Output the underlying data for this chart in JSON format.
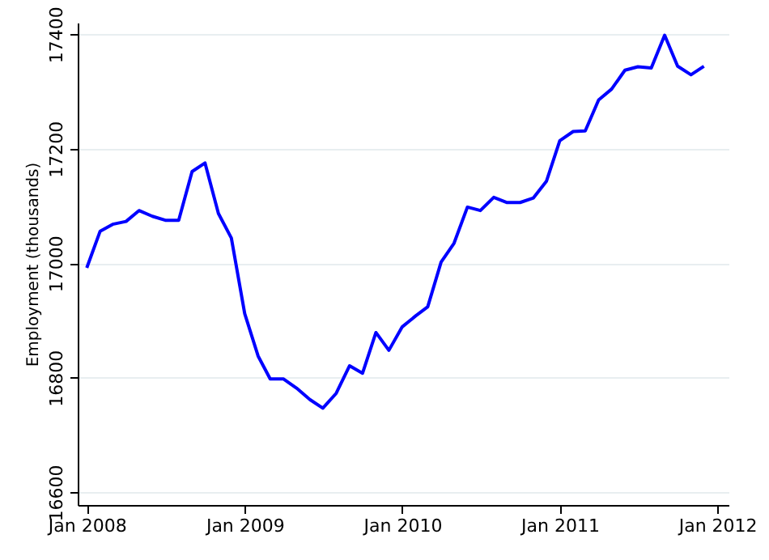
{
  "chart_data": {
    "type": "line",
    "ylabel": "Employment (thousands)",
    "x": [
      "2008-01",
      "2008-02",
      "2008-03",
      "2008-04",
      "2008-05",
      "2008-06",
      "2008-07",
      "2008-08",
      "2008-09",
      "2008-10",
      "2008-11",
      "2008-12",
      "2009-01",
      "2009-02",
      "2009-03",
      "2009-04",
      "2009-05",
      "2009-06",
      "2009-07",
      "2009-08",
      "2009-09",
      "2009-10",
      "2009-11",
      "2009-12",
      "2010-01",
      "2010-02",
      "2010-03",
      "2010-04",
      "2010-05",
      "2010-06",
      "2010-07",
      "2010-08",
      "2010-09",
      "2010-10",
      "2010-11",
      "2010-12",
      "2011-01",
      "2011-02",
      "2011-03",
      "2011-04",
      "2011-05",
      "2011-06",
      "2011-07",
      "2011-08",
      "2011-09",
      "2011-10",
      "2011-11",
      "2011-12"
    ],
    "series": [
      {
        "color": "#0000ff",
        "values": [
          16992,
          17056,
          17068,
          17073,
          17092,
          17082,
          17075,
          17075,
          17160,
          17175,
          17087,
          17044,
          16912,
          16838,
          16798,
          16798,
          16782,
          16762,
          16747,
          16773,
          16821,
          16808,
          16879,
          16848,
          16889,
          16908,
          16924,
          17002,
          17035,
          17098,
          17092,
          17115,
          17106,
          17106,
          17114,
          17143,
          17214,
          17230,
          17231,
          17285,
          17304,
          17337,
          17343,
          17341,
          17398,
          17344,
          17329,
          17344
        ]
      }
    ],
    "xlim": [
      "2007-12-11",
      "2012-01-27"
    ],
    "ylim": [
      16578,
      17420
    ],
    "xticks": [
      {
        "value": "2008-01-01",
        "label": "Jan 2008"
      },
      {
        "value": "2009-01-01",
        "label": "Jan 2009"
      },
      {
        "value": "2010-01-01",
        "label": "Jan 2010"
      },
      {
        "value": "2011-01-01",
        "label": "Jan 2011"
      },
      {
        "value": "2012-01-01",
        "label": "Jan 2012"
      }
    ],
    "yticks": [
      16600,
      16800,
      17000,
      17200,
      17400
    ],
    "grid": "y",
    "legend": false,
    "line_style": "solid",
    "marker": "none"
  }
}
